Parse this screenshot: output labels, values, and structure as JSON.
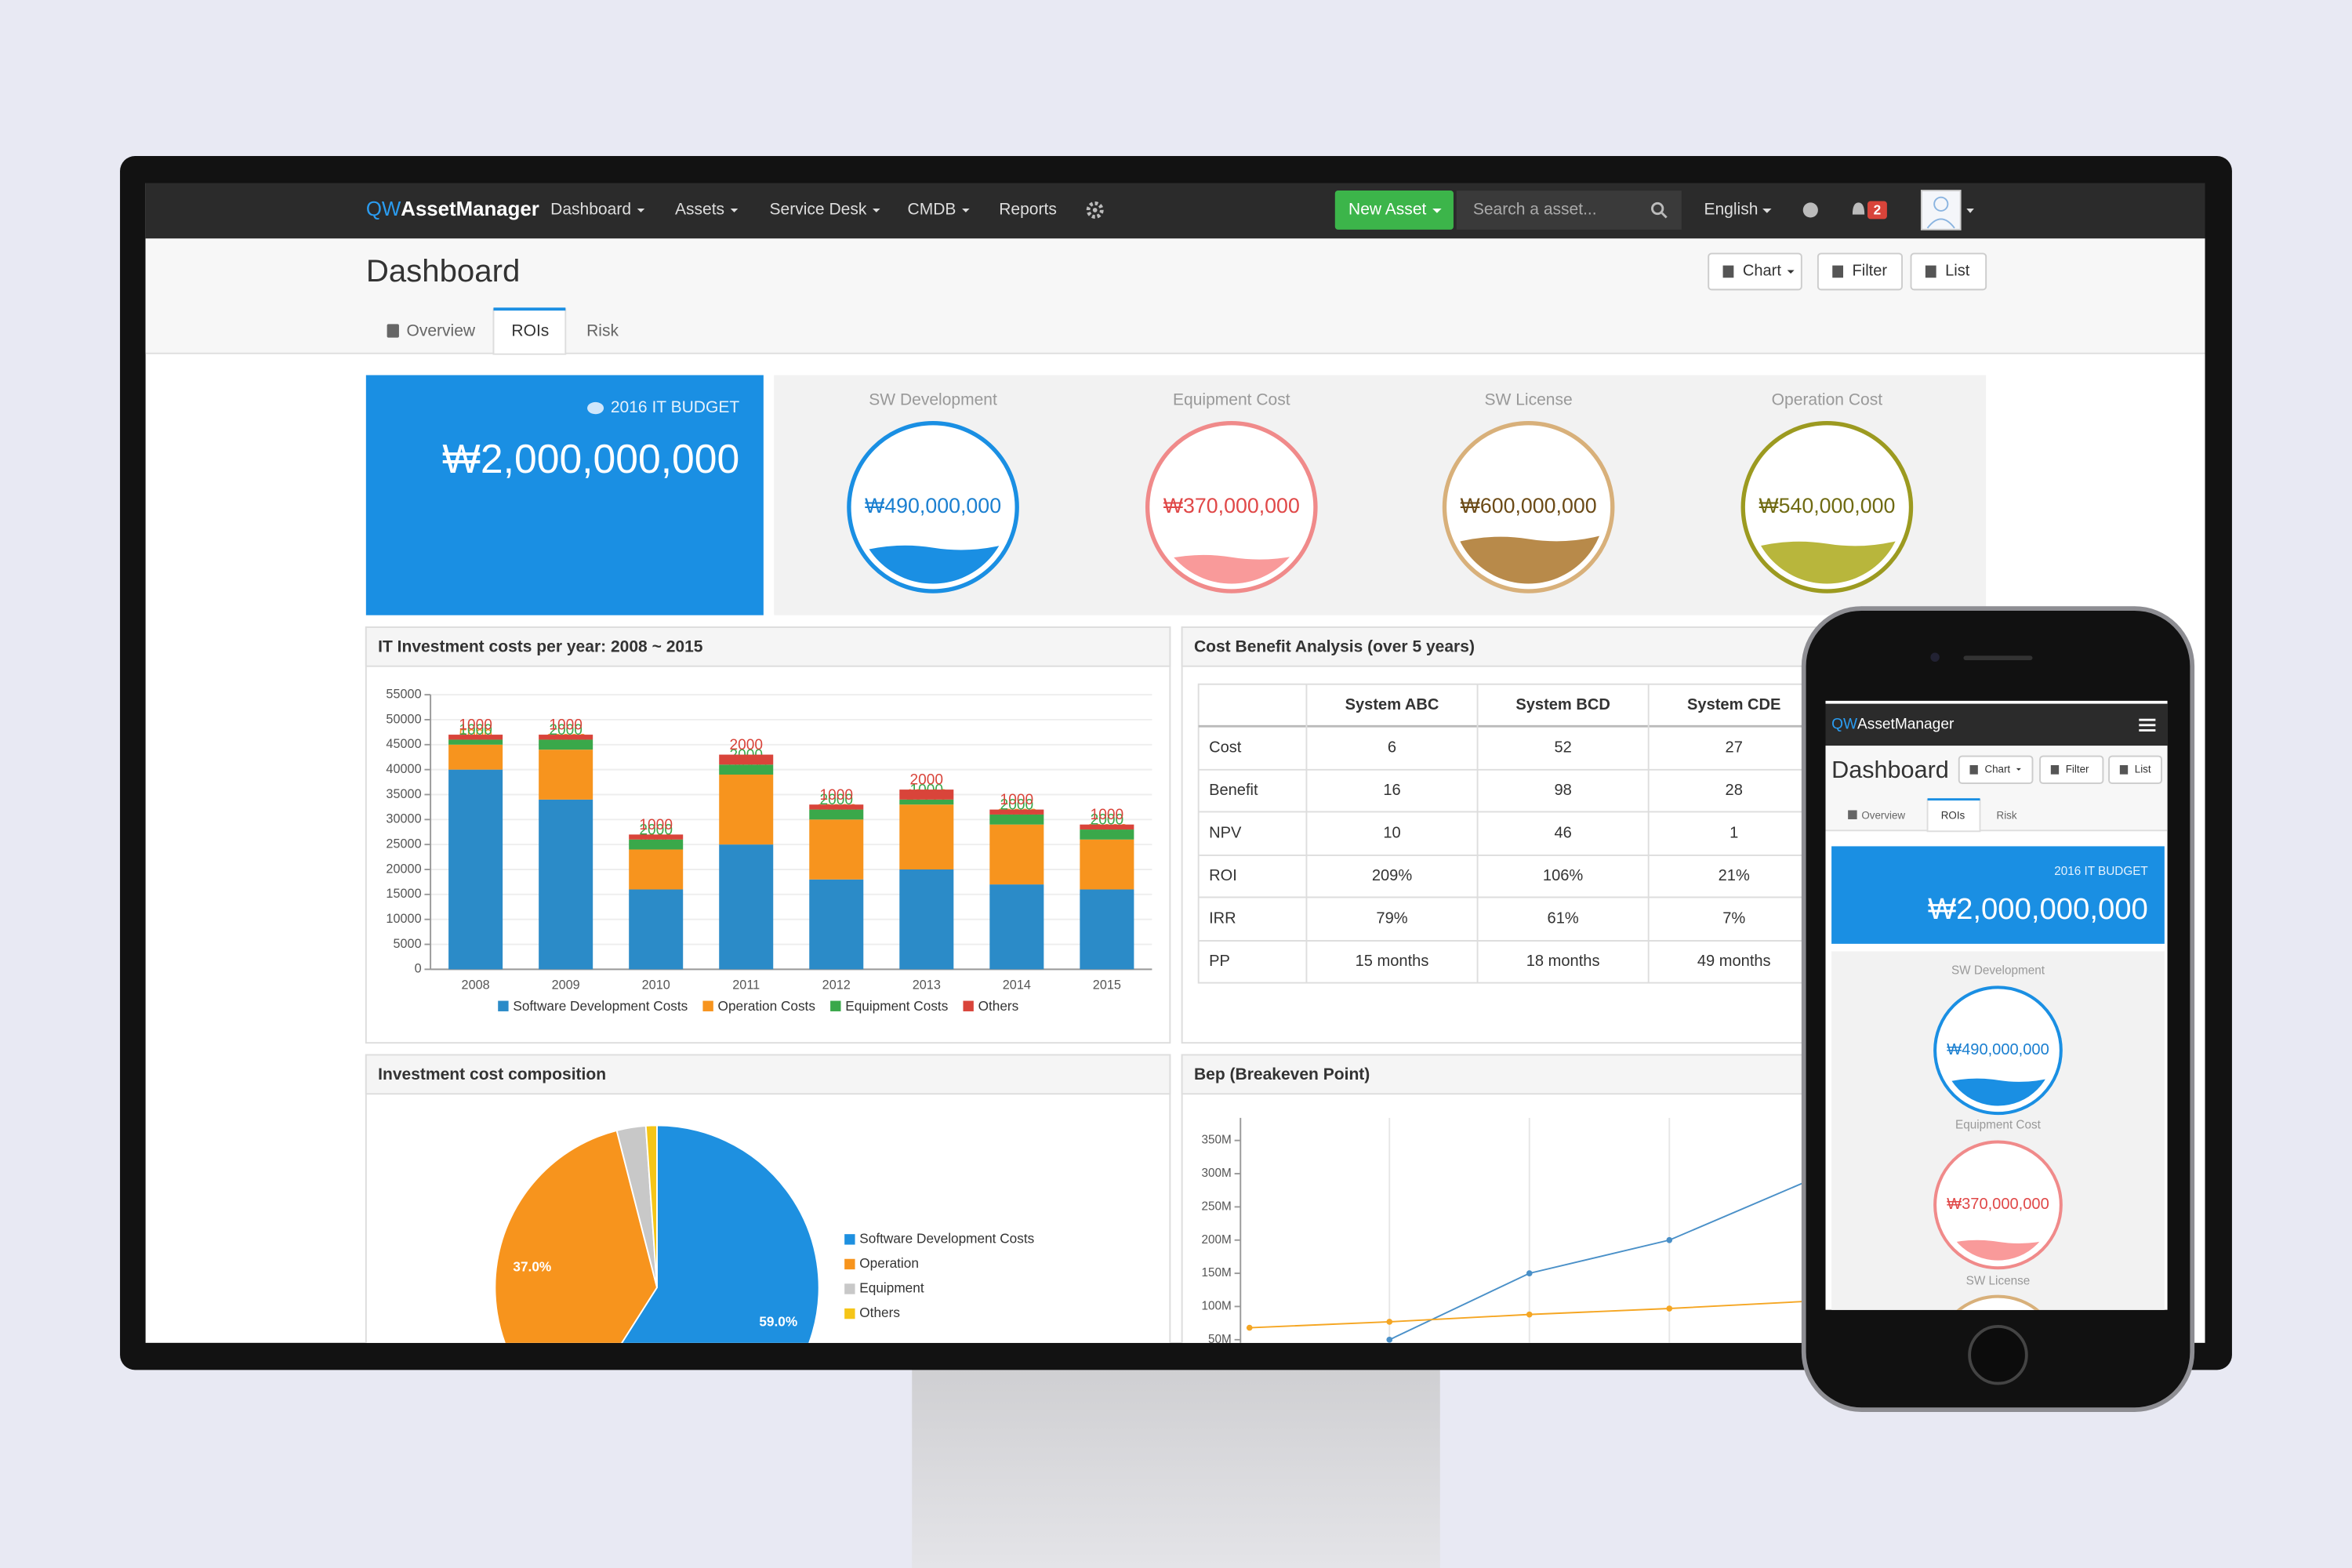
{
  "nav": {
    "brand_prefix": "QW",
    "brand": "AssetManager",
    "menu": [
      "Dashboard",
      "Assets",
      "Service Desk",
      "CMDB",
      "Reports"
    ],
    "new_asset": "New Asset",
    "search_placeholder": "Search a asset...",
    "language": "English",
    "notification_count": "2"
  },
  "header": {
    "title": "Dashboard",
    "buttons": [
      "Chart",
      "Filter",
      "List"
    ],
    "tabs": [
      "Overview",
      "ROIs",
      "Risk"
    ]
  },
  "budget": {
    "label": "2016 IT BUDGET",
    "amount": {
      "value": 2000000000,
      "label": "₩2,000,000,000"
    }
  },
  "gauges": [
    {
      "name": "SW Development",
      "amount": {
        "value": 490000000,
        "label": "₩490,000,000"
      },
      "color": "#1a8fe3",
      "fill": "#1a8fe3",
      "text_color": "#1a7fd0"
    },
    {
      "name": "Equipment Cost",
      "amount": {
        "value": 370000000,
        "label": "₩370,000,000"
      },
      "color": "#f08a8a",
      "fill": "#f99a9a",
      "text_color": "#e04848"
    },
    {
      "name": "SW License",
      "amount": {
        "value": 600000000,
        "label": "₩600,000,000"
      },
      "color": "#d8b07a",
      "fill": "#b88a4a",
      "text_color": "#6b4a16"
    },
    {
      "name": "Operation Cost",
      "amount": {
        "value": 540000000,
        "label": "₩540,000,000"
      },
      "color": "#9c9a20",
      "fill": "#b8b63c",
      "text_color": "#6f6a12"
    }
  ],
  "chart_data": [
    {
      "type": "bar",
      "stacked": true,
      "title": "IT Investment costs per year: 2008 ~ 2015",
      "categories": [
        "2008",
        "2009",
        "2010",
        "2011",
        "2012",
        "2013",
        "2014",
        "2015"
      ],
      "series": [
        {
          "name": "Software Development Costs",
          "color": "#2b8bc8",
          "values": [
            40000,
            34000,
            16000,
            25000,
            18000,
            20000,
            17000,
            16000
          ]
        },
        {
          "name": "Operation Costs",
          "color": "#f7941e",
          "values": [
            5000,
            10000,
            8000,
            14000,
            12000,
            13000,
            12000,
            10000
          ]
        },
        {
          "name": "Equipment Costs",
          "color": "#3aa84a",
          "values": [
            1000,
            2000,
            2000,
            2000,
            2000,
            1000,
            2000,
            2000
          ]
        },
        {
          "name": "Others",
          "color": "#d9443a",
          "values": [
            1000,
            1000,
            1000,
            2000,
            1000,
            2000,
            1000,
            1000
          ]
        }
      ],
      "ylim": [
        0,
        55000
      ],
      "yticks": [
        0,
        5000,
        10000,
        15000,
        20000,
        25000,
        30000,
        35000,
        40000,
        45000,
        50000,
        55000
      ],
      "grid": true,
      "legend": "bottom"
    },
    {
      "type": "pie",
      "title": "Investment cost composition",
      "categories": [
        "Software Development Costs",
        "Operation",
        "Equipment",
        "Others"
      ],
      "values": [
        59.0,
        37.0,
        2.9,
        1.1
      ],
      "value_labels": [
        "59.0%",
        "37.0%",
        null,
        null
      ],
      "colors": [
        "#1e90e0",
        "#f7941d",
        "#c8c8c8",
        "#f5c518"
      ],
      "legend": "right"
    },
    {
      "type": "line",
      "title": "Bep (Breakeven Point)",
      "categories": [
        null,
        null,
        null,
        null,
        null
      ],
      "series": [
        {
          "color": "#4a90c8",
          "values": [
            null,
            50000000,
            150000000,
            200000000,
            290000000
          ]
        },
        {
          "color": "#f5a623",
          "values": [
            68000000,
            77000000,
            88000000,
            97000000,
            108000000
          ]
        }
      ],
      "ylim": [
        0,
        375000000
      ],
      "yticks": [
        {
          "value": 50000000,
          "label": "50M"
        },
        {
          "value": 100000000,
          "label": "100M"
        },
        {
          "value": 150000000,
          "label": "150M"
        },
        {
          "value": 200000000,
          "label": "200M"
        },
        {
          "value": 250000000,
          "label": "250M"
        },
        {
          "value": 300000000,
          "label": "300M"
        },
        {
          "value": 350000000,
          "label": "350M"
        }
      ],
      "grid": "x"
    }
  ],
  "table": {
    "title": "Cost Benefit Analysis (over 5 years)",
    "columns": [
      "System ABC",
      "System BCD",
      "System CDE"
    ],
    "rows": [
      {
        "label": "Cost",
        "cells": [
          "6",
          "52",
          "27"
        ]
      },
      {
        "label": "Benefit",
        "cells": [
          "16",
          "98",
          "28"
        ]
      },
      {
        "label": "NPV",
        "cells": [
          "10",
          "46",
          "1"
        ]
      },
      {
        "label": "ROI",
        "cells": [
          "209%",
          "106%",
          "21%"
        ]
      },
      {
        "label": "IRR",
        "cells": [
          "79%",
          "61%",
          "7%"
        ]
      },
      {
        "label": "PP",
        "cells": [
          "15 months",
          "18 months",
          "49 months"
        ]
      }
    ]
  }
}
